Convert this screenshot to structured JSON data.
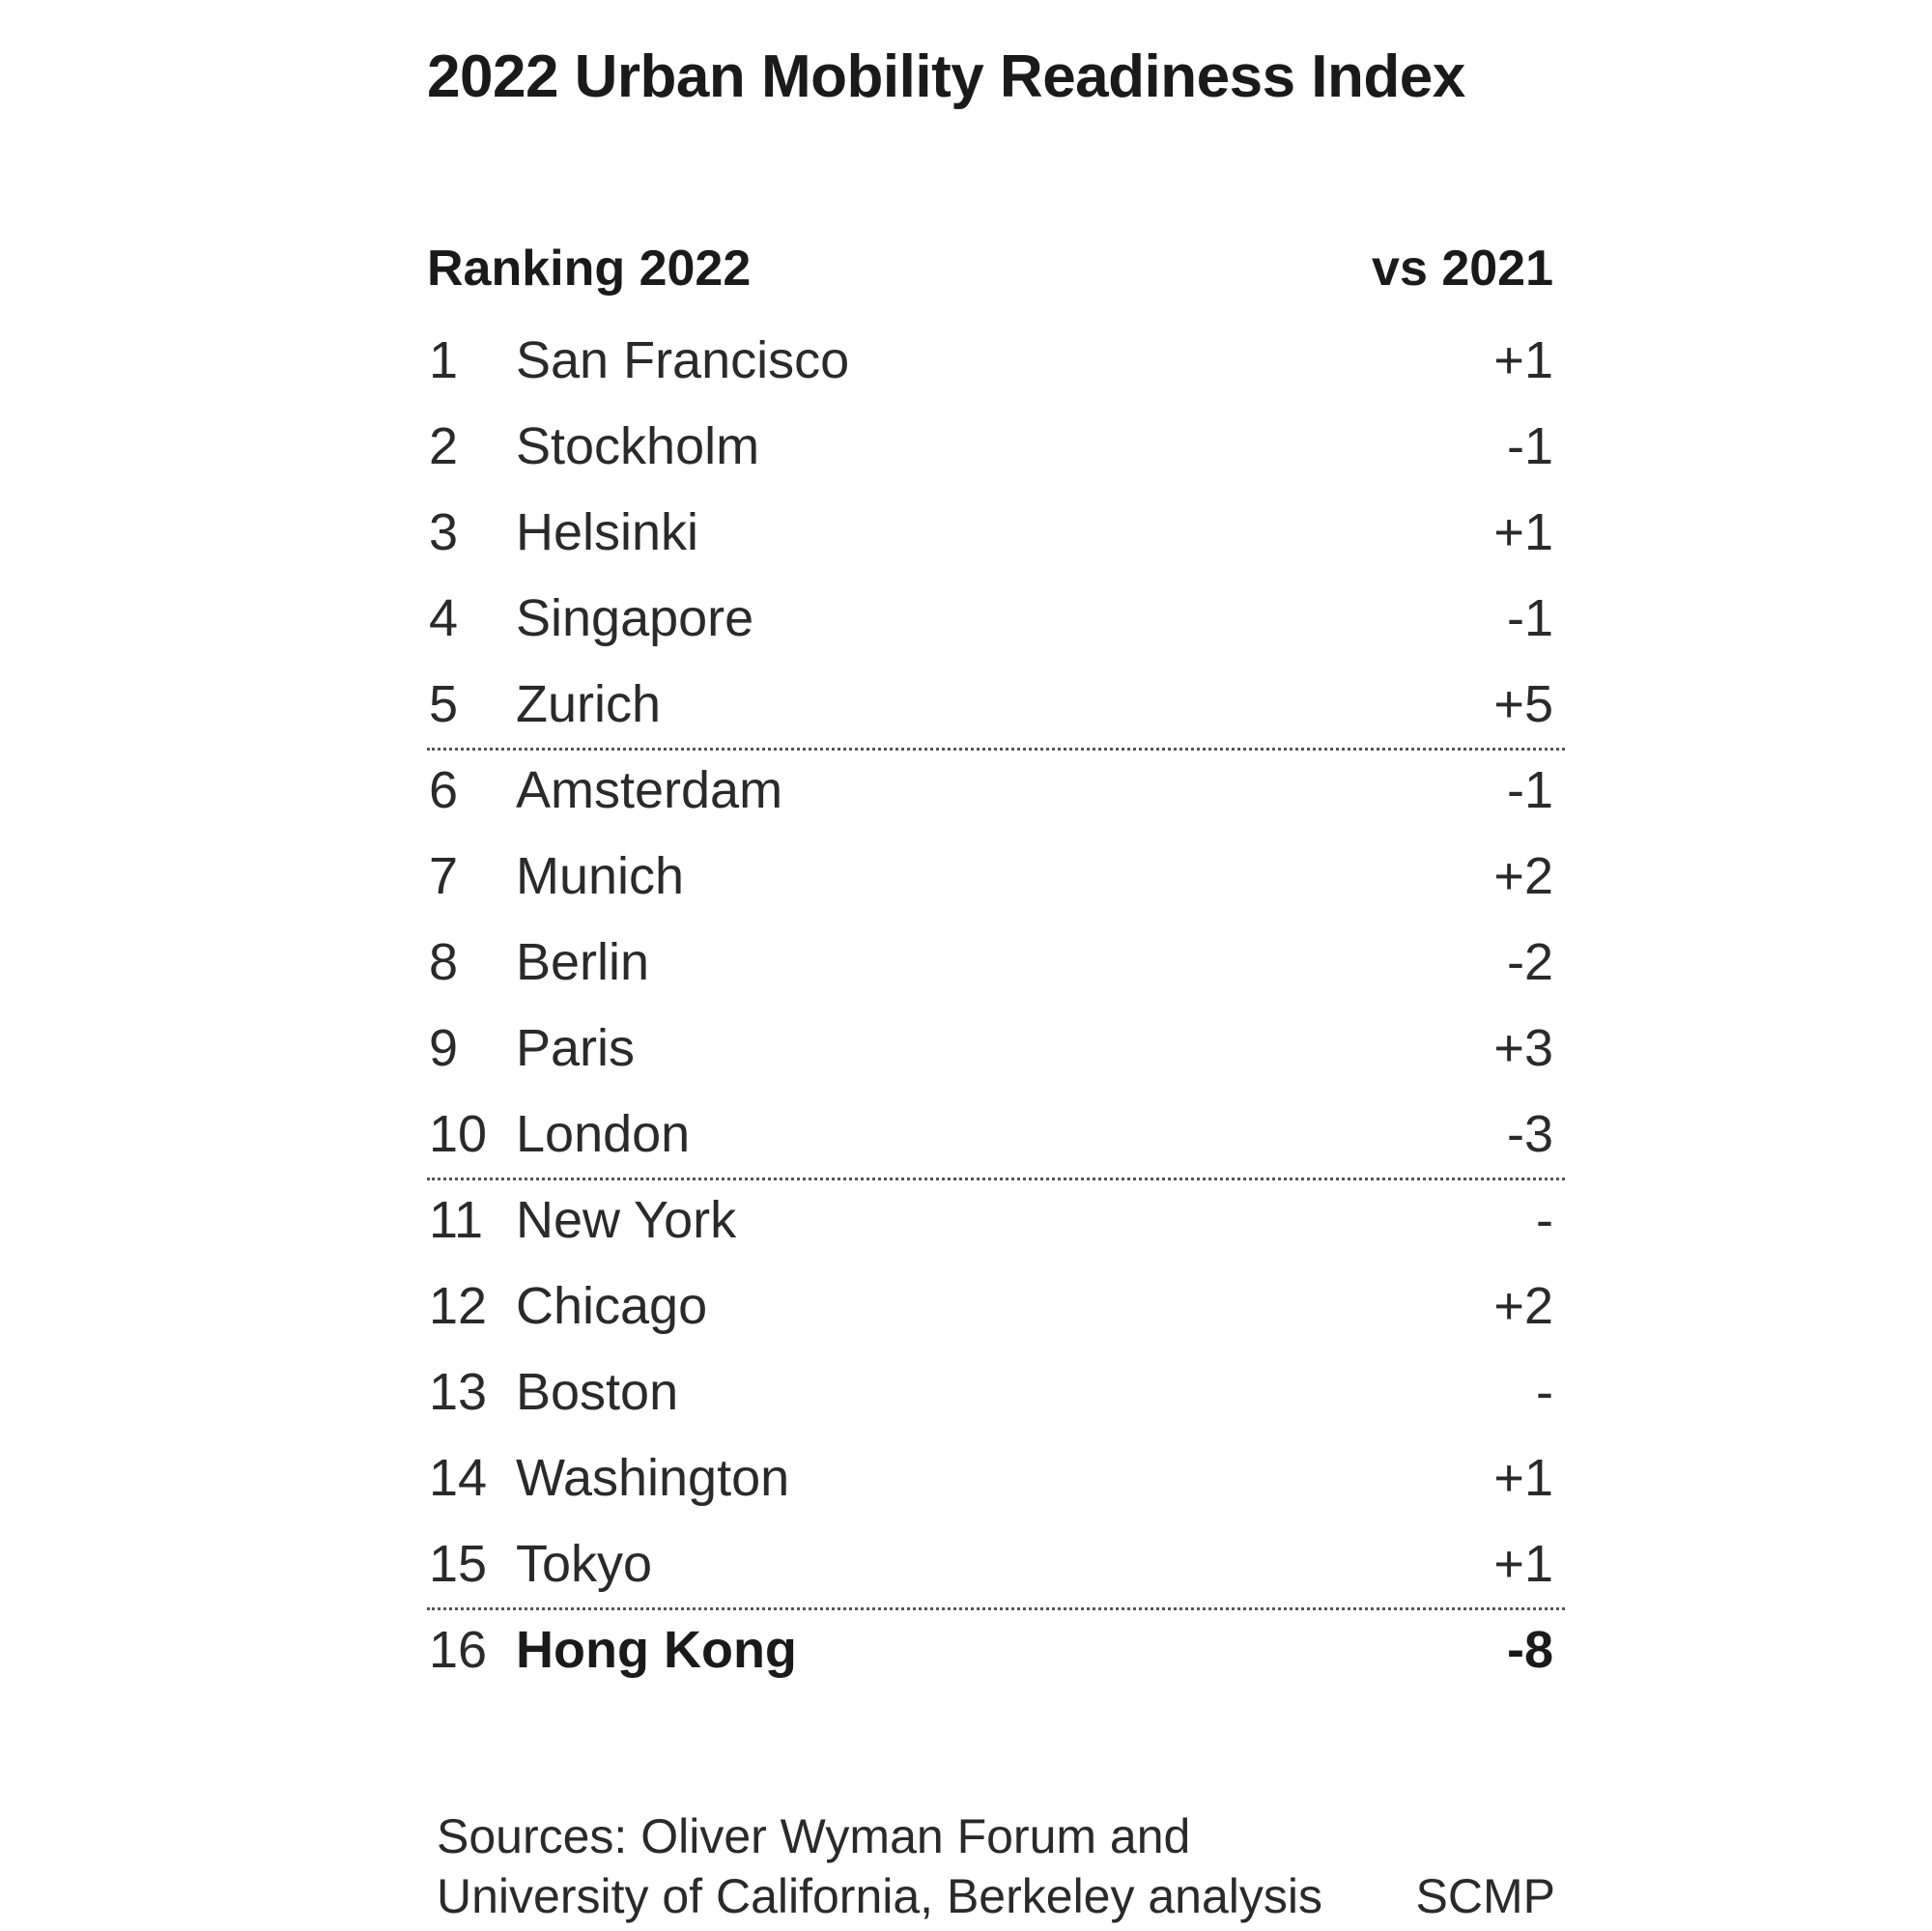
{
  "chart_data": {
    "type": "table",
    "title": "2022 Urban Mobility Readiness Index",
    "columns": [
      "Ranking 2022",
      "vs 2021"
    ],
    "rows": [
      {
        "rank": "1",
        "city": "San Francisco",
        "change": "+1"
      },
      {
        "rank": "2",
        "city": "Stockholm",
        "change": "-1"
      },
      {
        "rank": "3",
        "city": "Helsinki",
        "change": "+1"
      },
      {
        "rank": "4",
        "city": "Singapore",
        "change": "-1"
      },
      {
        "rank": "5",
        "city": "Zurich",
        "change": "+5"
      },
      {
        "rank": "6",
        "city": "Amsterdam",
        "change": "-1"
      },
      {
        "rank": "7",
        "city": "Munich",
        "change": "+2"
      },
      {
        "rank": "8",
        "city": "Berlin",
        "change": "-2"
      },
      {
        "rank": "9",
        "city": "Paris",
        "change": "+3"
      },
      {
        "rank": "10",
        "city": "London",
        "change": "-3"
      },
      {
        "rank": "11",
        "city": "New York",
        "change": "-"
      },
      {
        "rank": "12",
        "city": "Chicago",
        "change": "+2"
      },
      {
        "rank": "13",
        "city": "Boston",
        "change": "-"
      },
      {
        "rank": "14",
        "city": "Washington",
        "change": "+1"
      },
      {
        "rank": "15",
        "city": "Tokyo",
        "change": "+1"
      },
      {
        "rank": "16",
        "city": "Hong Kong",
        "change": "-8"
      }
    ],
    "separators_after_ranks": [
      5,
      10,
      15
    ],
    "highlighted_rank": 16,
    "source_lines": [
      "Sources: Oliver Wyman Forum and",
      "University of California, Berkeley analysis"
    ],
    "credit": "SCMP"
  }
}
